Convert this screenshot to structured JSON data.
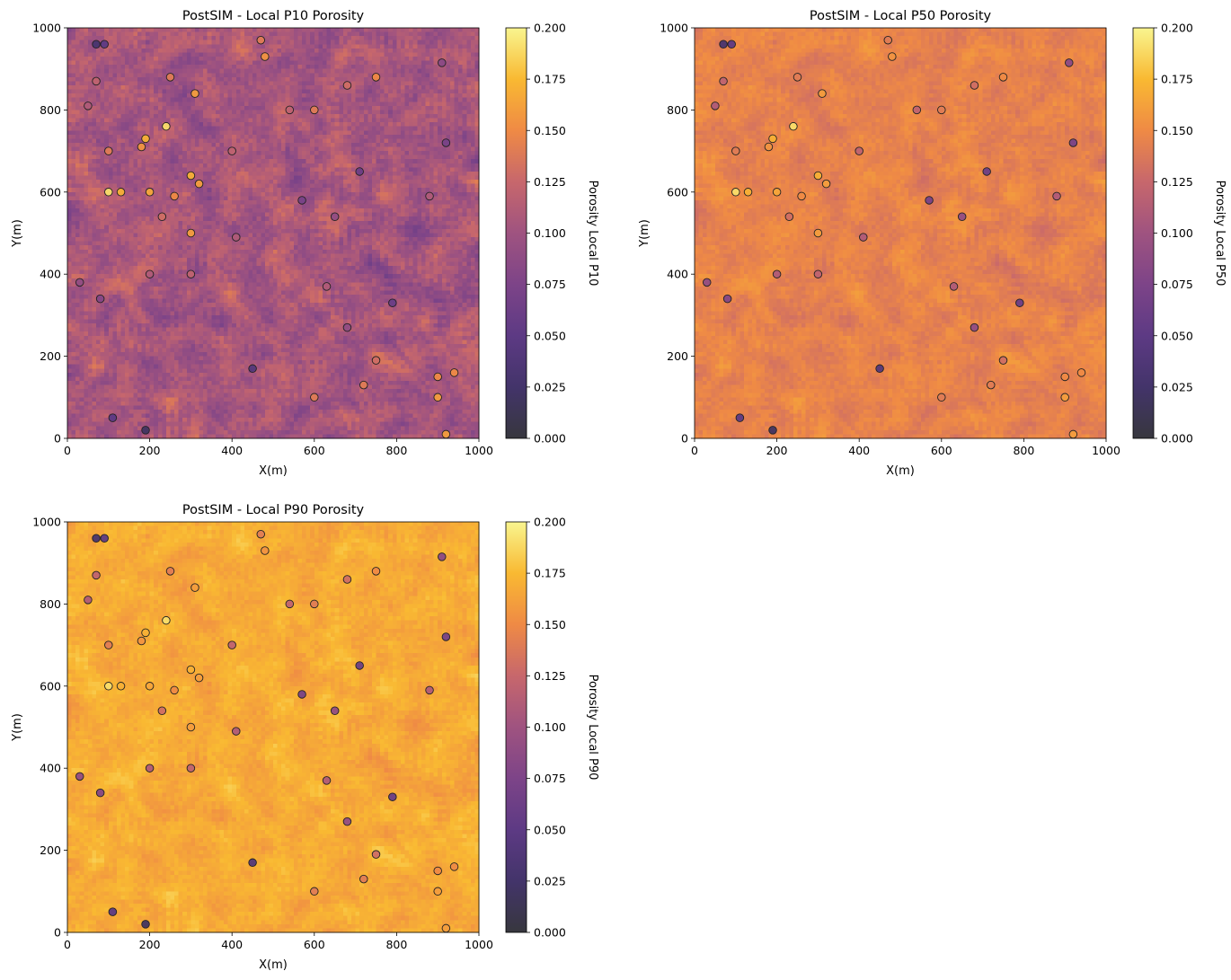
{
  "chart_data": [
    {
      "type": "heatmap",
      "title": "PostSIM - Local P10 Porosity",
      "xlabel": "X(m)",
      "ylabel": "Y(m)",
      "colorbar_label": "Porosity Local P10",
      "xlim": [
        0,
        1000
      ],
      "ylim": [
        0,
        1000
      ],
      "x_ticks": [
        "0",
        "200",
        "400",
        "600",
        "800",
        "1000"
      ],
      "y_ticks": [
        "0",
        "200",
        "400",
        "600",
        "800",
        "1000"
      ],
      "colorbar_range": [
        0,
        0.2
      ],
      "colorbar_ticks": [
        "0.000",
        "0.025",
        "0.050",
        "0.075",
        "0.100",
        "0.125",
        "0.150",
        "0.175",
        "0.200"
      ],
      "colormap": "inferno",
      "field_mean": 0.105,
      "field_spread": 0.03
    },
    {
      "type": "heatmap",
      "title": "PostSIM - Local P50 Porosity",
      "xlabel": "X(m)",
      "ylabel": "Y(m)",
      "colorbar_label": "Porosity Local P50",
      "xlim": [
        0,
        1000
      ],
      "ylim": [
        0,
        1000
      ],
      "x_ticks": [
        "0",
        "200",
        "400",
        "600",
        "800",
        "1000"
      ],
      "y_ticks": [
        "0",
        "200",
        "400",
        "600",
        "800",
        "1000"
      ],
      "colorbar_range": [
        0,
        0.2
      ],
      "colorbar_ticks": [
        "0.000",
        "0.025",
        "0.050",
        "0.075",
        "0.100",
        "0.125",
        "0.150",
        "0.175",
        "0.200"
      ],
      "colormap": "inferno",
      "field_mean": 0.145,
      "field_spread": 0.014
    },
    {
      "type": "heatmap",
      "title": "PostSIM - Local P90 Porosity",
      "xlabel": "X(m)",
      "ylabel": "Y(m)",
      "colorbar_label": "Porosity Local P90",
      "xlim": [
        0,
        1000
      ],
      "ylim": [
        0,
        1000
      ],
      "x_ticks": [
        "0",
        "200",
        "400",
        "600",
        "800",
        "1000"
      ],
      "y_ticks": [
        "0",
        "200",
        "400",
        "600",
        "800",
        "1000"
      ],
      "colorbar_range": [
        0,
        0.2
      ],
      "colorbar_ticks": [
        "0.000",
        "0.025",
        "0.050",
        "0.075",
        "0.100",
        "0.125",
        "0.150",
        "0.175",
        "0.200"
      ],
      "colormap": "inferno",
      "field_mean": 0.168,
      "field_spread": 0.014
    }
  ],
  "wells": [
    {
      "x": 70,
      "y": 960,
      "por": 0.03
    },
    {
      "x": 90,
      "y": 960,
      "por": 0.05
    },
    {
      "x": 470,
      "y": 970,
      "por": 0.14
    },
    {
      "x": 480,
      "y": 930,
      "por": 0.155
    },
    {
      "x": 910,
      "y": 915,
      "por": 0.085
    },
    {
      "x": 70,
      "y": 870,
      "por": 0.12
    },
    {
      "x": 250,
      "y": 880,
      "por": 0.14
    },
    {
      "x": 310,
      "y": 840,
      "por": 0.16
    },
    {
      "x": 680,
      "y": 860,
      "por": 0.13
    },
    {
      "x": 750,
      "y": 880,
      "por": 0.15
    },
    {
      "x": 50,
      "y": 810,
      "por": 0.11
    },
    {
      "x": 540,
      "y": 800,
      "por": 0.12
    },
    {
      "x": 600,
      "y": 800,
      "por": 0.14
    },
    {
      "x": 240,
      "y": 760,
      "por": 0.19
    },
    {
      "x": 190,
      "y": 730,
      "por": 0.17
    },
    {
      "x": 180,
      "y": 710,
      "por": 0.155
    },
    {
      "x": 920,
      "y": 720,
      "por": 0.07
    },
    {
      "x": 100,
      "y": 700,
      "por": 0.14
    },
    {
      "x": 400,
      "y": 700,
      "por": 0.12
    },
    {
      "x": 710,
      "y": 650,
      "por": 0.06
    },
    {
      "x": 300,
      "y": 640,
      "por": 0.17
    },
    {
      "x": 320,
      "y": 620,
      "por": 0.16
    },
    {
      "x": 100,
      "y": 600,
      "por": 0.19
    },
    {
      "x": 130,
      "y": 600,
      "por": 0.17
    },
    {
      "x": 200,
      "y": 600,
      "por": 0.165
    },
    {
      "x": 260,
      "y": 590,
      "por": 0.15
    },
    {
      "x": 570,
      "y": 580,
      "por": 0.07
    },
    {
      "x": 880,
      "y": 590,
      "por": 0.11
    },
    {
      "x": 230,
      "y": 540,
      "por": 0.13
    },
    {
      "x": 650,
      "y": 540,
      "por": 0.09
    },
    {
      "x": 300,
      "y": 500,
      "por": 0.16
    },
    {
      "x": 410,
      "y": 490,
      "por": 0.11
    },
    {
      "x": 200,
      "y": 400,
      "por": 0.11
    },
    {
      "x": 300,
      "y": 400,
      "por": 0.12
    },
    {
      "x": 30,
      "y": 380,
      "por": 0.09
    },
    {
      "x": 630,
      "y": 370,
      "por": 0.11
    },
    {
      "x": 80,
      "y": 340,
      "por": 0.08
    },
    {
      "x": 790,
      "y": 330,
      "por": 0.06
    },
    {
      "x": 680,
      "y": 270,
      "por": 0.09
    },
    {
      "x": 750,
      "y": 190,
      "por": 0.13
    },
    {
      "x": 450,
      "y": 170,
      "por": 0.04
    },
    {
      "x": 720,
      "y": 130,
      "por": 0.14
    },
    {
      "x": 900,
      "y": 150,
      "por": 0.15
    },
    {
      "x": 940,
      "y": 160,
      "por": 0.15
    },
    {
      "x": 600,
      "y": 100,
      "por": 0.14
    },
    {
      "x": 900,
      "y": 100,
      "por": 0.16
    },
    {
      "x": 110,
      "y": 50,
      "por": 0.05
    },
    {
      "x": 190,
      "y": 20,
      "por": 0.02
    },
    {
      "x": 920,
      "y": 10,
      "por": 0.16
    }
  ]
}
